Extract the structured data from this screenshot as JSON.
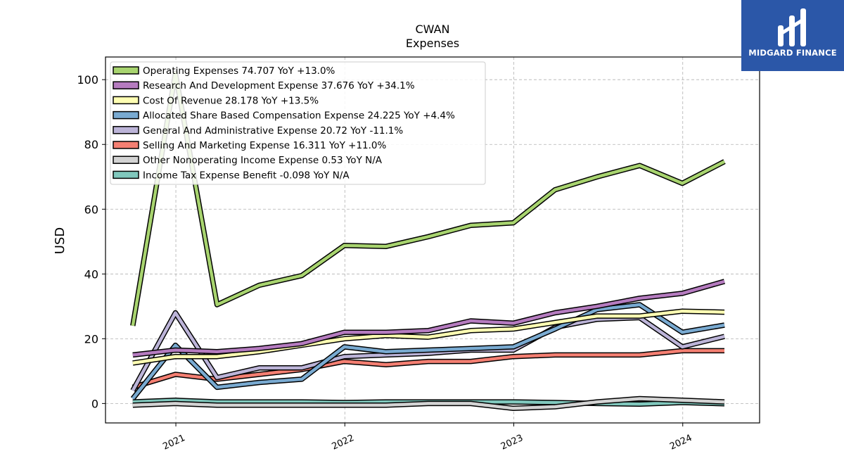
{
  "chart_data": {
    "type": "line",
    "title": "CWAN",
    "subtitle": "Expenses",
    "ylabel": "USD",
    "xlabel": "",
    "ylim": [
      -6,
      107
    ],
    "xlim": [
      "2020-08-02",
      "2024-06-15"
    ],
    "yticks": [
      0,
      20,
      40,
      60,
      80,
      100
    ],
    "xticks": [
      {
        "date": "2021-01-01",
        "label": "2021"
      },
      {
        "date": "2022-01-01",
        "label": "2022"
      },
      {
        "date": "2023-01-01",
        "label": "2023"
      },
      {
        "date": "2024-01-01",
        "label": "2024"
      }
    ],
    "grid": true,
    "legend_position": "top-left",
    "x": [
      "2020-09-30",
      "2020-12-31",
      "2021-03-31",
      "2021-06-30",
      "2021-09-30",
      "2021-12-31",
      "2022-03-31",
      "2022-06-30",
      "2022-09-30",
      "2022-12-31",
      "2023-03-31",
      "2023-06-30",
      "2023-09-30",
      "2023-12-31",
      "2024-03-31"
    ],
    "series": [
      {
        "name": "Operating Expenses",
        "legend": "Operating Expenses  74.707 YoY +13.0%",
        "color": "#a8d46f",
        "values": [
          24,
          102,
          30.5,
          36.5,
          39.5,
          48.8,
          48.5,
          51.5,
          55,
          55.8,
          66,
          70,
          73.5,
          68,
          74.7
        ]
      },
      {
        "name": "Research And Development Expense",
        "legend": "Research And Development Expense  37.676 YoY +34.1%",
        "color": "#b57bbf",
        "values": [
          15,
          16.5,
          16,
          17,
          18.5,
          22,
          22,
          22.5,
          25.5,
          24.8,
          28,
          30,
          32.5,
          34,
          37.7
        ]
      },
      {
        "name": "Cost Of Revenue",
        "legend": "Cost Of Revenue  28.178 YoY +13.5%",
        "color": "#ffffb3",
        "values": [
          12.5,
          14.5,
          14.5,
          16,
          18,
          20,
          21,
          20.5,
          22.5,
          23,
          25,
          27,
          27,
          28.5,
          28.2
        ]
      },
      {
        "name": "Allocated Share Based Compensation Expense",
        "legend": "Allocated Share Based Compensation Expense  24.225 YoY +4.4%",
        "color": "#79aad1",
        "values": [
          1.5,
          18,
          5,
          6.5,
          7.5,
          17.5,
          16,
          16.5,
          17,
          17.5,
          23,
          29,
          30.5,
          22,
          24.2
        ]
      },
      {
        "name": "General And Administrative Expense",
        "legend": "General And Administrative Expense  20.72 YoY -11.1%",
        "color": "#bcb4d8",
        "values": [
          4,
          28,
          8,
          11,
          11,
          14.5,
          15,
          15.5,
          16.5,
          16.5,
          23.5,
          26,
          26.5,
          17.5,
          20.7
        ]
      },
      {
        "name": "Selling And Marketing Expense",
        "legend": "Selling And Marketing Expense  16.311 YoY +11.0%",
        "color": "#f47f72",
        "values": [
          5,
          9,
          7.5,
          9,
          10.5,
          13,
          12,
          13,
          13,
          14.5,
          15,
          15,
          15,
          16.3,
          16.3
        ]
      },
      {
        "name": "Other Nonoperating Income Expense",
        "legend": "Other Nonoperating Income Expense  0.53 YoY N/A",
        "color": "#d3d3d3",
        "values": [
          -0.5,
          0,
          -0.5,
          -0.5,
          -0.5,
          -0.5,
          -0.5,
          0,
          0,
          -1.5,
          -1,
          0.5,
          1.5,
          1,
          0.5
        ]
      },
      {
        "name": "Income Tax Expense Benefit",
        "legend": "Income Tax Expense Benefit  -0.098 YoY N/A",
        "color": "#80c8bd",
        "values": [
          0.5,
          1,
          0.5,
          0.5,
          0.5,
          0.3,
          0.5,
          0.5,
          0.5,
          0.5,
          0.3,
          0,
          -0.2,
          0.3,
          -0.1
        ]
      }
    ]
  },
  "logo": {
    "text": "MIDGARD FINANCE",
    "color": "#2b57a8"
  }
}
